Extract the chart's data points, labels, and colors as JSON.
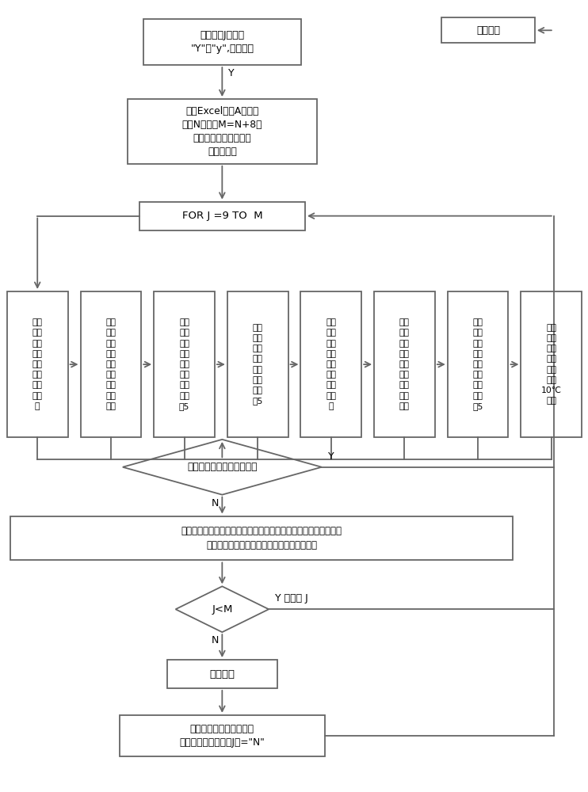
{
  "bg_color": "#ffffff",
  "box_edge": "#666666",
  "text_color": "#000000",
  "arrow_color": "#666666",
  "trigger_text": "当第一行J列输入\n\"Y\"或\"y\",软件运行",
  "check_end_text": "检查结束",
  "read_excel_text": "读取Excel表格A列最大\n序号N，并令M=N+8，\n清除第三行、第五行原\n检查结果。",
  "for_text": "FOR J =9 TO  M",
  "box_texts": [
    "判定\n左股\n钢轨\n锁定\n轨温\n是否\n与设\n计相\n符",
    "判定\n左股\n钢轨\n锁定\n轨温\n是否\n与拉\n伸量\n相符",
    "判定\n左股\n相邻\n钢轨\n锁定\n轨温\n差是\n否大\n于5",
    "判定\n左右\n股钢\n轨锁\n定轨\n温是\n否大\n于5",
    "判定\n右股\n钢轨\n锁定\n轨温\n是否\n与设\n计相\n符",
    "判定\n右股\n钢轨\n锁定\n轨温\n是否\n与拉\n伸量\n相符",
    "判定\n右股\n相邻\n钢轨\n锁定\n轨温\n差是\n否大\n于5",
    "判定\n同一\n区间\n锁定\n轨温\n差超\n10℃\n处所"
  ],
  "diamond1_text": "锁定轨温数据是否符合规范",
  "error_text": "将不符合规范要求数据的情况汇总至第三行、第五行相应的栏内，\n根据错误类型，表格中相应行标示不同颜色。",
  "diamond2_text": "J<M",
  "end_loop_text": "结束循环",
  "clear_text": "清除表格运行中写表格的\n中间结果，令第一行J列=\"N\"",
  "label_Y": "Y",
  "label_N": "N",
  "label_Y_next": "Y 下一个 J"
}
